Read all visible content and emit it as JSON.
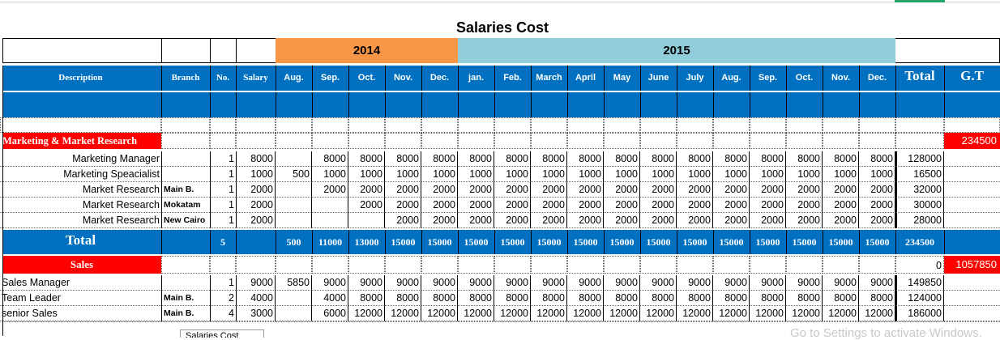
{
  "title": "Salaries Cost",
  "years": {
    "y2014": "2014",
    "y2015": "2015"
  },
  "headers": {
    "description": "Description",
    "branch": "Branch",
    "no": "No.",
    "salary": "Salary",
    "months": [
      "Aug.",
      "Sep.",
      "Oct.",
      "Nov.",
      "Dec.",
      "jan.",
      "Feb.",
      "March",
      "April",
      "May",
      "June",
      "July",
      "Aug.",
      "Sep.",
      "Oct.",
      "Nov.",
      "Dec."
    ],
    "total": "Total",
    "gt": "G.T"
  },
  "marketing": {
    "label": "Marketing & Market Research",
    "gt": "234500",
    "rows": [
      {
        "desc": "Marketing Manager",
        "branch": "",
        "no": "1",
        "salary": "8000",
        "m": [
          "",
          "8000",
          "8000",
          "8000",
          "8000",
          "8000",
          "8000",
          "8000",
          "8000",
          "8000",
          "8000",
          "8000",
          "8000",
          "8000",
          "8000",
          "8000",
          "8000"
        ],
        "total": "128000"
      },
      {
        "desc": "Marketing Speacialist",
        "branch": "",
        "no": "1",
        "salary": "1000",
        "m": [
          "500",
          "1000",
          "1000",
          "1000",
          "1000",
          "1000",
          "1000",
          "1000",
          "1000",
          "1000",
          "1000",
          "1000",
          "1000",
          "1000",
          "1000",
          "1000",
          "1000"
        ],
        "total": "16500"
      },
      {
        "desc": "Market Research",
        "branch": "Main B.",
        "no": "1",
        "salary": "2000",
        "m": [
          "",
          "2000",
          "2000",
          "2000",
          "2000",
          "2000",
          "2000",
          "2000",
          "2000",
          "2000",
          "2000",
          "2000",
          "2000",
          "2000",
          "2000",
          "2000",
          "2000"
        ],
        "total": "32000"
      },
      {
        "desc": "Market Research",
        "branch": "Mokatam",
        "no": "1",
        "salary": "2000",
        "m": [
          "",
          "",
          "2000",
          "2000",
          "2000",
          "2000",
          "2000",
          "2000",
          "2000",
          "2000",
          "2000",
          "2000",
          "2000",
          "2000",
          "2000",
          "2000",
          "2000"
        ],
        "total": "30000"
      },
      {
        "desc": "Market Research",
        "branch": "New Cairo",
        "no": "1",
        "salary": "2000",
        "m": [
          "",
          "",
          "",
          "2000",
          "2000",
          "2000",
          "2000",
          "2000",
          "2000",
          "2000",
          "2000",
          "2000",
          "2000",
          "2000",
          "2000",
          "2000",
          "2000"
        ],
        "total": "28000"
      }
    ],
    "total_row": {
      "label": "Total",
      "no": "5",
      "m": [
        "500",
        "11000",
        "13000",
        "15000",
        "15000",
        "15000",
        "15000",
        "15000",
        "15000",
        "15000",
        "15000",
        "15000",
        "15000",
        "15000",
        "15000",
        "15000",
        "15000"
      ],
      "total": "234500"
    }
  },
  "sales": {
    "label": "Sales",
    "total": "0",
    "gt": "1057850",
    "rows": [
      {
        "desc": "Sales Manager",
        "branch": "",
        "no": "1",
        "salary": "9000",
        "m": [
          "5850",
          "9000",
          "9000",
          "9000",
          "9000",
          "9000",
          "9000",
          "9000",
          "9000",
          "9000",
          "9000",
          "9000",
          "9000",
          "9000",
          "9000",
          "9000",
          "9000"
        ],
        "total": "149850"
      },
      {
        "desc": "Team Leader",
        "branch": "Main B.",
        "no": "2",
        "salary": "4000",
        "m": [
          "",
          "4000",
          "8000",
          "8000",
          "8000",
          "8000",
          "8000",
          "8000",
          "8000",
          "8000",
          "8000",
          "8000",
          "8000",
          "8000",
          "8000",
          "8000",
          "8000"
        ],
        "total": "124000"
      },
      {
        "desc": "senior Sales",
        "branch": "Main B.",
        "no": "4",
        "salary": "3000",
        "m": [
          "",
          "6000",
          "12000",
          "12000",
          "12000",
          "12000",
          "12000",
          "12000",
          "12000",
          "12000",
          "12000",
          "12000",
          "12000",
          "12000",
          "12000",
          "12000",
          "12000"
        ],
        "total": "186000"
      }
    ]
  },
  "sheet_tab": "Salaries Cost",
  "watermark": "Go to Settings to activate Windows."
}
